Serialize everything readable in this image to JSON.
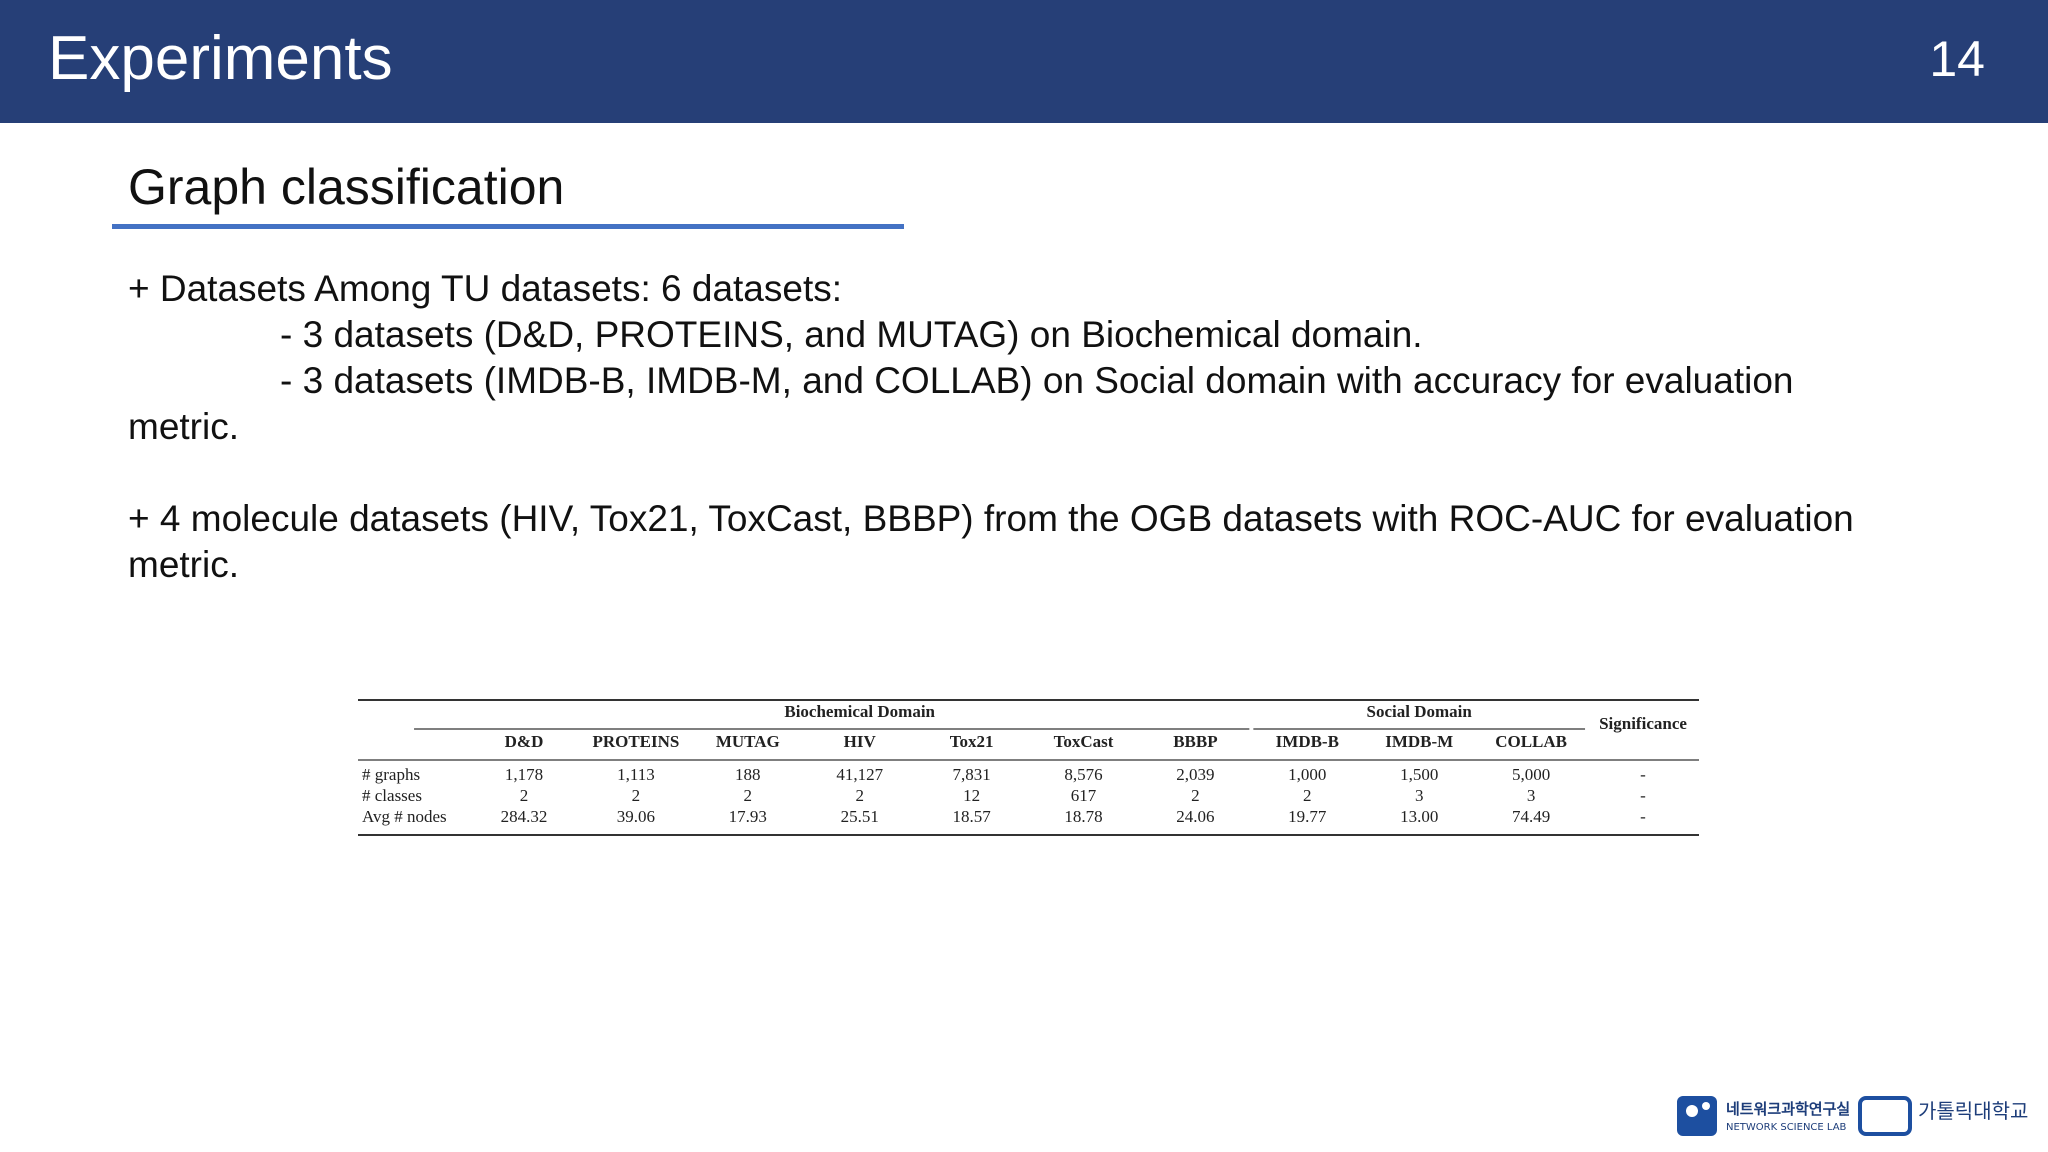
{
  "header": {
    "title": "Experiments",
    "page_number": "14"
  },
  "section": {
    "title": "Graph classification"
  },
  "body": {
    "paragraphs": [
      {
        "text": "+ Datasets Among TU datasets: 6 datasets:",
        "subitems": [
          "- 3 datasets (D&D, PROTEINS, and MUTAG) on Biochemical domain.",
          "- 3 datasets (IMDB-B, IMDB-M, and COLLAB) on Social domain with accuracy for evaluation metric."
        ]
      },
      {
        "text": "+ 4 molecule datasets (HIV, Tox21, ToxCast, BBBP) from the OGB datasets with ROC-AUC for evaluation metric.",
        "subitems": []
      }
    ]
  },
  "table": {
    "groups": [
      {
        "label": "Biochemical Domain",
        "span": 7
      },
      {
        "label": "Social Domain",
        "span": 3
      }
    ],
    "columns": [
      "D&D",
      "PROTEINS",
      "MUTAG",
      "HIV",
      "Tox21",
      "ToxCast",
      "BBBP",
      "IMDB-B",
      "IMDB-M",
      "COLLAB",
      "Significance"
    ],
    "rows": [
      [
        "# graphs",
        "1,178",
        "1,113",
        "188",
        "41,127",
        "7,831",
        "8,576",
        "2,039",
        "1,000",
        "1,500",
        "5,000",
        "-"
      ],
      [
        "# classes",
        "2",
        "2",
        "2",
        "2",
        "12",
        "617",
        "2",
        "2",
        "3",
        "3",
        "-"
      ],
      [
        "Avg # nodes",
        "284.32",
        "39.06",
        "17.93",
        "25.51",
        "18.57",
        "18.78",
        "24.06",
        "19.77",
        "13.00",
        "74.49",
        "-"
      ]
    ]
  },
  "footer": {
    "logo_lab": "네트워크과학연구실",
    "logo_lab_en": "NETWORK SCIENCE LAB",
    "logo_univ": "가톨릭대학교"
  }
}
